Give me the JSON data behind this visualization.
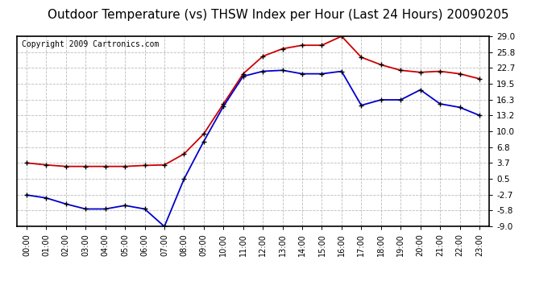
{
  "title": "Outdoor Temperature (vs) THSW Index per Hour (Last 24 Hours) 20090205",
  "copyright": "Copyright 2009 Cartronics.com",
  "hours": [
    "00:00",
    "01:00",
    "02:00",
    "03:00",
    "04:00",
    "05:00",
    "06:00",
    "07:00",
    "08:00",
    "09:00",
    "10:00",
    "11:00",
    "12:00",
    "13:00",
    "14:00",
    "15:00",
    "16:00",
    "17:00",
    "18:00",
    "19:00",
    "20:00",
    "21:00",
    "22:00",
    "23:00"
  ],
  "thsw": [
    3.7,
    3.3,
    3.0,
    3.0,
    3.0,
    3.0,
    3.2,
    3.3,
    5.5,
    9.5,
    15.5,
    21.5,
    25.0,
    26.5,
    27.2,
    27.2,
    29.0,
    24.8,
    23.3,
    22.2,
    21.8,
    22.0,
    21.5,
    20.5
  ],
  "temp": [
    -2.7,
    -3.3,
    -4.5,
    -5.5,
    -5.5,
    -4.8,
    -5.5,
    -9.0,
    0.5,
    8.0,
    15.0,
    21.0,
    22.0,
    22.2,
    21.5,
    21.5,
    22.0,
    15.2,
    16.3,
    16.3,
    18.3,
    15.5,
    14.8,
    13.2
  ],
  "red_color": "#cc0000",
  "blue_color": "#0000cc",
  "bg_color": "#ffffff",
  "grid_color": "#bbbbbb",
  "yticks": [
    -9.0,
    -5.8,
    -2.7,
    0.5,
    3.7,
    6.8,
    10.0,
    13.2,
    16.3,
    19.5,
    22.7,
    25.8,
    29.0
  ],
  "ylim": [
    -9.0,
    29.0
  ],
  "title_fontsize": 11,
  "copyright_fontsize": 7,
  "tick_fontsize": 7.5,
  "xtick_fontsize": 7
}
